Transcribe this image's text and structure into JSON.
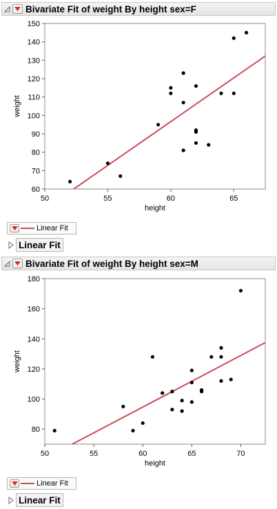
{
  "reports": [
    {
      "title": "Bivariate Fit of weight By height sex=F",
      "legend_label": "Linear Fit",
      "subreport_label": "Linear Fit"
    },
    {
      "title": "Bivariate Fit of weight By height sex=M",
      "legend_label": "Linear Fit",
      "subreport_label": "Linear Fit"
    }
  ],
  "colors": {
    "fit_line": "#cc4b5a",
    "points": "#000000",
    "menu_triangle": "#d42b2b"
  },
  "chart_data": [
    {
      "type": "scatter",
      "title": "",
      "xlabel": "height",
      "ylabel": "weight",
      "xlim": [
        50,
        67.5
      ],
      "ylim": [
        60,
        150
      ],
      "xticks": [
        50,
        55,
        60,
        65
      ],
      "yticks": [
        60,
        70,
        80,
        90,
        100,
        110,
        120,
        130,
        140,
        150
      ],
      "grid": false,
      "points": [
        {
          "x": 52,
          "y": 64
        },
        {
          "x": 55,
          "y": 74
        },
        {
          "x": 56,
          "y": 67
        },
        {
          "x": 59,
          "y": 95
        },
        {
          "x": 60,
          "y": 112
        },
        {
          "x": 60,
          "y": 115
        },
        {
          "x": 61,
          "y": 123
        },
        {
          "x": 61,
          "y": 107
        },
        {
          "x": 61,
          "y": 81
        },
        {
          "x": 62,
          "y": 116
        },
        {
          "x": 62,
          "y": 92
        },
        {
          "x": 62,
          "y": 91
        },
        {
          "x": 62,
          "y": 85
        },
        {
          "x": 63,
          "y": 84
        },
        {
          "x": 64,
          "y": 112
        },
        {
          "x": 65,
          "y": 112
        },
        {
          "x": 65,
          "y": 142
        },
        {
          "x": 66,
          "y": 145
        }
      ],
      "fit_line": {
        "name": "Linear Fit",
        "x1": 52.3,
        "y1": 60,
        "x2": 67.5,
        "y2": 132.3
      }
    },
    {
      "type": "scatter",
      "title": "",
      "xlabel": "height",
      "ylabel": "weight",
      "xlim": [
        50,
        72.5
      ],
      "ylim": [
        70,
        180
      ],
      "xticks": [
        50,
        55,
        60,
        65,
        70
      ],
      "yticks": [
        80,
        100,
        120,
        140,
        160,
        180
      ],
      "grid": false,
      "points": [
        {
          "x": 51,
          "y": 79
        },
        {
          "x": 58,
          "y": 95
        },
        {
          "x": 59,
          "y": 79
        },
        {
          "x": 60,
          "y": 84
        },
        {
          "x": 61,
          "y": 128
        },
        {
          "x": 62,
          "y": 104
        },
        {
          "x": 63,
          "y": 105
        },
        {
          "x": 63,
          "y": 93
        },
        {
          "x": 64,
          "y": 99
        },
        {
          "x": 64,
          "y": 92
        },
        {
          "x": 65,
          "y": 119
        },
        {
          "x": 65,
          "y": 111
        },
        {
          "x": 65,
          "y": 98
        },
        {
          "x": 66,
          "y": 106
        },
        {
          "x": 66,
          "y": 105
        },
        {
          "x": 67,
          "y": 128
        },
        {
          "x": 68,
          "y": 134
        },
        {
          "x": 68,
          "y": 128
        },
        {
          "x": 68,
          "y": 112
        },
        {
          "x": 69,
          "y": 113
        },
        {
          "x": 70,
          "y": 172
        }
      ],
      "fit_line": {
        "name": "Linear Fit",
        "x1": 52.8,
        "y1": 70,
        "x2": 72.5,
        "y2": 137.5
      }
    }
  ]
}
